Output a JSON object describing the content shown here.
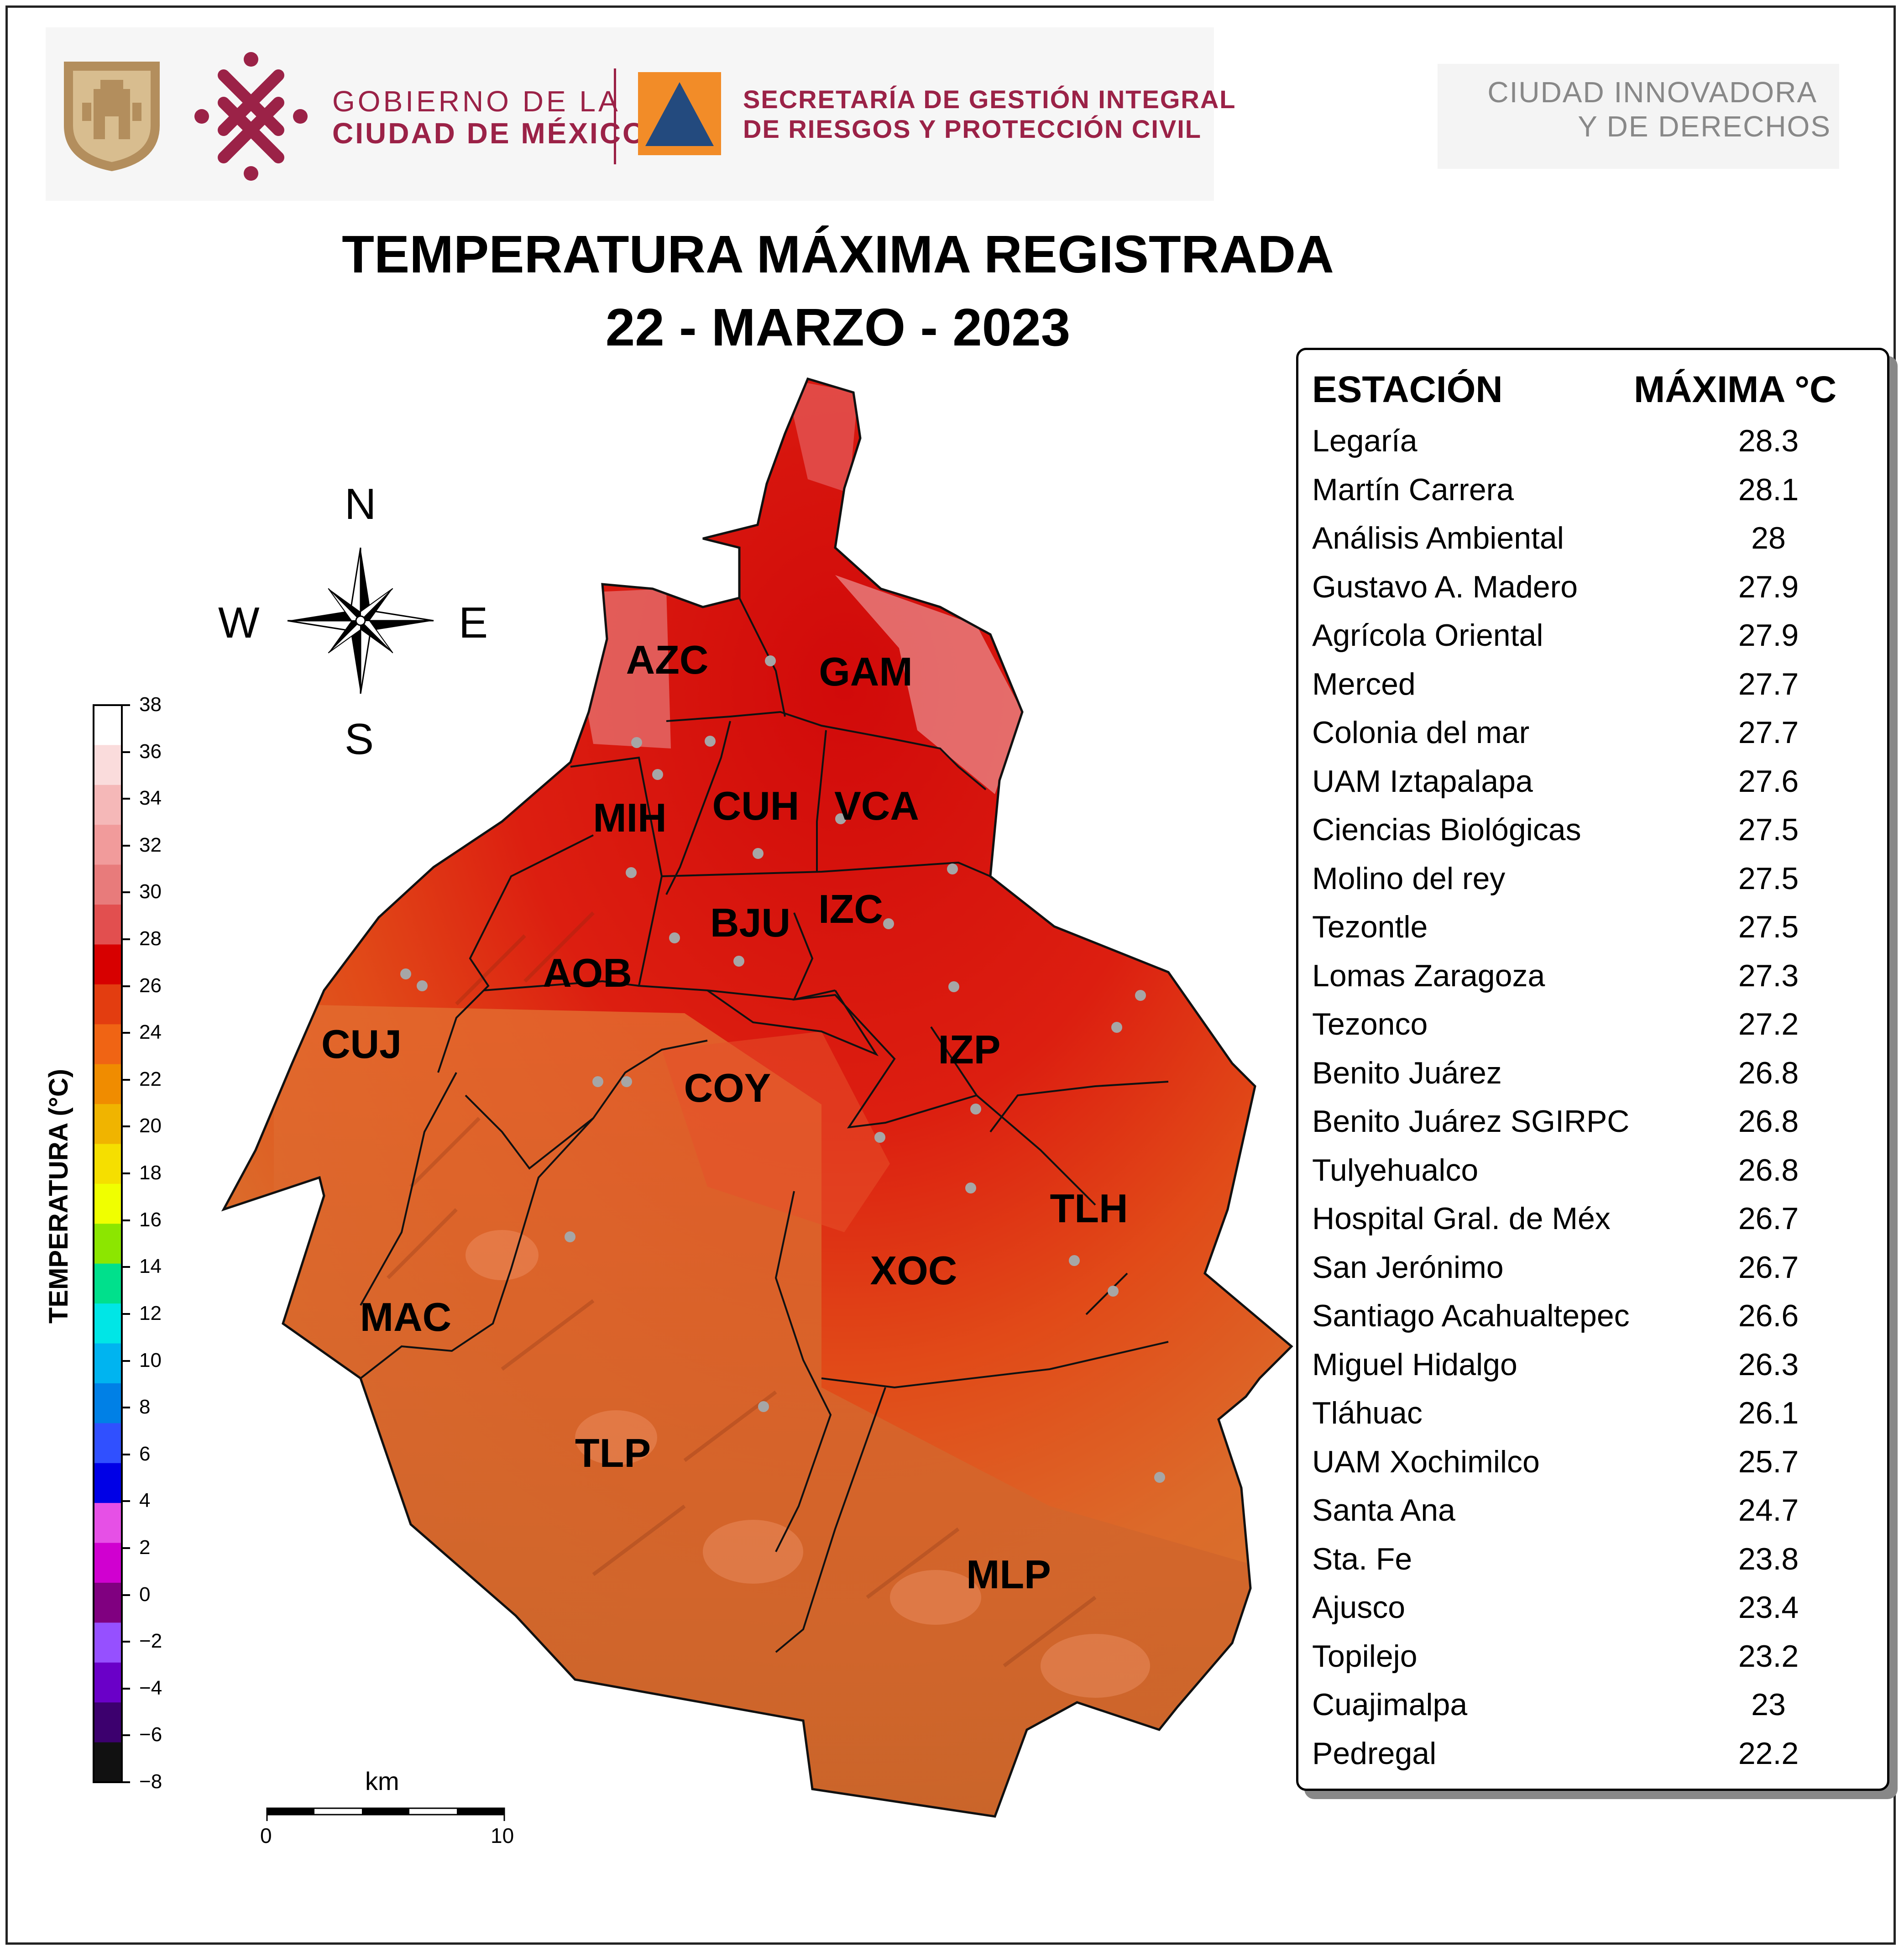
{
  "header": {
    "gov_line1": "GOBIERNO DE LA",
    "gov_line2": "CIUDAD DE MÉXICO",
    "sec_line1": "SECRETARÍA DE GESTIÓN INTEGRAL",
    "sec_line2": "DE RIESGOS Y PROTECCIÓN CIVIL",
    "ciudad_line1": "CIUDAD INNOVADORA",
    "ciudad_line2": "Y DE DERECHOS",
    "brand_color": "#9b2247",
    "orange": "#f28c28",
    "navy": "#234a7e"
  },
  "title": {
    "line1": "TEMPERATURA MÁXIMA REGISTRADA",
    "line2": "22 - MARZO - 2023"
  },
  "compass": {
    "n": "N",
    "s": "S",
    "e": "E",
    "w": "W"
  },
  "colorbar": {
    "label": "TEMPERATURA (°C)",
    "ticks": [
      "38",
      "36",
      "34",
      "32",
      "30",
      "28",
      "26",
      "24",
      "22",
      "20",
      "18",
      "16",
      "14",
      "12",
      "10",
      "8",
      "6",
      "4",
      "2",
      "0",
      "−2",
      "−4",
      "−6",
      "−8"
    ],
    "colors": [
      "#ffffff",
      "#fadcdc",
      "#f5b8b8",
      "#f19b9b",
      "#e87b7b",
      "#e24f4f",
      "#d70000",
      "#e33d10",
      "#f06414",
      "#f08c00",
      "#f0b400",
      "#f5df00",
      "#f0ff00",
      "#8ce600",
      "#00e08c",
      "#00e6e6",
      "#00b4f0",
      "#0080e6",
      "#3050ff",
      "#0000e6",
      "#e650e6",
      "#d000d0",
      "#800080",
      "#9650ff",
      "#6a00c8",
      "#3c006e",
      "#111111"
    ]
  },
  "scale_bar": {
    "unit": "km",
    "start": "0",
    "end": "10"
  },
  "regions": [
    "AZC",
    "GAM",
    "MIH",
    "CUH",
    "VCA",
    "BJU",
    "IZC",
    "AOB",
    "CUJ",
    "COY",
    "IZP",
    "TLH",
    "XOC",
    "MAC",
    "TLP",
    "MLP"
  ],
  "table": {
    "header_station": "ESTACIÓN",
    "header_max": "MÁXIMA °C",
    "rows": [
      {
        "name": "Legaría",
        "value": "28.3"
      },
      {
        "name": "Martín Carrera",
        "value": "28.1"
      },
      {
        "name": "Análisis Ambiental",
        "value": "28"
      },
      {
        "name": "Gustavo A. Madero",
        "value": "27.9"
      },
      {
        "name": "Agrícola Oriental",
        "value": "27.9"
      },
      {
        "name": "Merced",
        "value": "27.7"
      },
      {
        "name": "Colonia del mar",
        "value": "27.7"
      },
      {
        "name": "UAM Iztapalapa",
        "value": "27.6"
      },
      {
        "name": "Ciencias Biológicas",
        "value": "27.5"
      },
      {
        "name": "Molino del rey",
        "value": "27.5"
      },
      {
        "name": "Tezontle",
        "value": "27.5"
      },
      {
        "name": "Lomas Zaragoza",
        "value": "27.3"
      },
      {
        "name": "Tezonco",
        "value": "27.2"
      },
      {
        "name": "Benito Juárez",
        "value": "26.8"
      },
      {
        "name": "Benito Juárez SGIRPC",
        "value": "26.8"
      },
      {
        "name": "Tulyehualco",
        "value": "26.8"
      },
      {
        "name": "Hospital Gral. de Méx",
        "value": "26.7"
      },
      {
        "name": "San Jerónimo",
        "value": "26.7"
      },
      {
        "name": "Santiago Acahualtepec",
        "value": "26.6"
      },
      {
        "name": "Miguel Hidalgo",
        "value": "26.3"
      },
      {
        "name": "Tláhuac",
        "value": "26.1"
      },
      {
        "name": "UAM Xochimilco",
        "value": "25.7"
      },
      {
        "name": "Santa Ana",
        "value": "24.7"
      },
      {
        "name": "Sta. Fe",
        "value": "23.8"
      },
      {
        "name": "Ajusco",
        "value": "23.4"
      },
      {
        "name": "Topilejo",
        "value": "23.2"
      },
      {
        "name": "Cuajimalpa",
        "value": "23"
      },
      {
        "name": "Pedregal",
        "value": "22.2"
      }
    ]
  }
}
